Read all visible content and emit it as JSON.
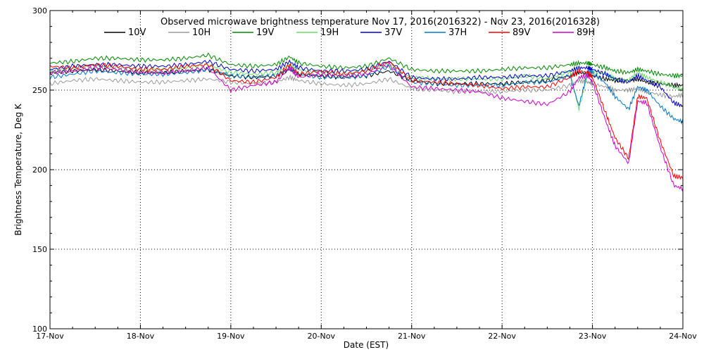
{
  "chart_data": {
    "type": "line",
    "title": "Observed microwave brightness temperature Nov 17, 2016(2016322) - Nov 23, 2016(2016328)",
    "xlabel": "Date (EST)",
    "ylabel": "Brightness Temperature, Deg K",
    "ylim": [
      100,
      300
    ],
    "yticks": [
      "100",
      "150",
      "200",
      "250",
      "300"
    ],
    "xlim": [
      0,
      7
    ],
    "xticks": [
      "17-Nov",
      "18-Nov",
      "19-Nov",
      "20-Nov",
      "21-Nov",
      "22-Nov",
      "23-Nov",
      "24-Nov"
    ],
    "grid": true,
    "legend_position": "top",
    "x": [
      0,
      0.25,
      0.5,
      0.75,
      1.0,
      1.25,
      1.5,
      1.75,
      2.0,
      2.25,
      2.5,
      2.65,
      2.75,
      3.0,
      3.25,
      3.5,
      3.75,
      4.0,
      4.25,
      4.5,
      4.75,
      5.0,
      5.25,
      5.5,
      5.75,
      5.85,
      5.95,
      6.0,
      6.15,
      6.25,
      6.4,
      6.5,
      6.6,
      6.75,
      6.9,
      7.0
    ],
    "series": [
      {
        "name": "10V",
        "color": "#000000",
        "values": [
          261,
          262,
          263,
          262,
          261,
          261,
          262,
          263,
          259,
          258,
          259,
          263,
          260,
          259,
          258,
          259,
          262,
          256,
          254,
          254,
          254,
          254,
          255,
          256,
          259,
          261,
          260,
          259,
          257,
          256,
          256,
          257,
          255,
          254,
          253,
          253
        ]
      },
      {
        "name": "10H",
        "color": "#999999",
        "values": [
          254,
          256,
          257,
          256,
          255,
          255,
          256,
          257,
          255,
          254,
          255,
          258,
          256,
          254,
          253,
          254,
          257,
          251,
          250,
          249,
          249,
          249,
          250,
          250,
          253,
          256,
          255,
          254,
          252,
          250,
          250,
          251,
          249,
          247,
          246,
          247
        ]
      },
      {
        "name": "19V",
        "color": "#008800",
        "values": [
          267,
          268,
          270,
          270,
          269,
          269,
          270,
          272,
          266,
          265,
          266,
          271,
          267,
          265,
          264,
          265,
          270,
          263,
          262,
          262,
          262,
          263,
          264,
          264,
          266,
          267,
          267,
          266,
          264,
          262,
          261,
          263,
          262,
          260,
          259,
          259
        ]
      },
      {
        "name": "19H",
        "color": "#66dd66",
        "values": [
          262,
          264,
          265,
          264,
          263,
          263,
          264,
          266,
          261,
          260,
          261,
          266,
          263,
          261,
          260,
          262,
          266,
          258,
          257,
          257,
          257,
          257,
          259,
          257,
          262,
          238,
          262,
          262,
          260,
          257,
          256,
          261,
          258,
          255,
          252,
          250
        ]
      },
      {
        "name": "37V",
        "color": "#0000cc",
        "values": [
          263,
          265,
          266,
          266,
          265,
          265,
          266,
          268,
          263,
          262,
          263,
          268,
          264,
          262,
          262,
          263,
          268,
          258,
          257,
          257,
          258,
          258,
          259,
          259,
          262,
          264,
          264,
          263,
          260,
          257,
          255,
          259,
          256,
          252,
          242,
          240
        ]
      },
      {
        "name": "37H",
        "color": "#0077cc",
        "values": [
          258,
          260,
          262,
          261,
          260,
          260,
          261,
          263,
          259,
          258,
          259,
          264,
          260,
          258,
          258,
          259,
          265,
          255,
          254,
          253,
          253,
          253,
          255,
          255,
          259,
          240,
          262,
          261,
          254,
          246,
          238,
          252,
          250,
          240,
          232,
          230
        ]
      },
      {
        "name": "89V",
        "color": "#ff0000",
        "values": [
          265,
          264,
          266,
          265,
          263,
          263,
          265,
          266,
          256,
          255,
          258,
          266,
          260,
          262,
          260,
          262,
          268,
          256,
          255,
          254,
          253,
          251,
          252,
          252,
          258,
          262,
          261,
          258,
          235,
          220,
          207,
          246,
          245,
          218,
          196,
          195
        ]
      },
      {
        "name": "89H",
        "color": "#cc00cc",
        "values": [
          261,
          262,
          264,
          263,
          261,
          261,
          262,
          264,
          250,
          253,
          255,
          264,
          258,
          260,
          259,
          260,
          266,
          252,
          251,
          250,
          249,
          245,
          243,
          241,
          249,
          258,
          259,
          255,
          230,
          215,
          204,
          243,
          242,
          214,
          190,
          188
        ]
      }
    ]
  }
}
